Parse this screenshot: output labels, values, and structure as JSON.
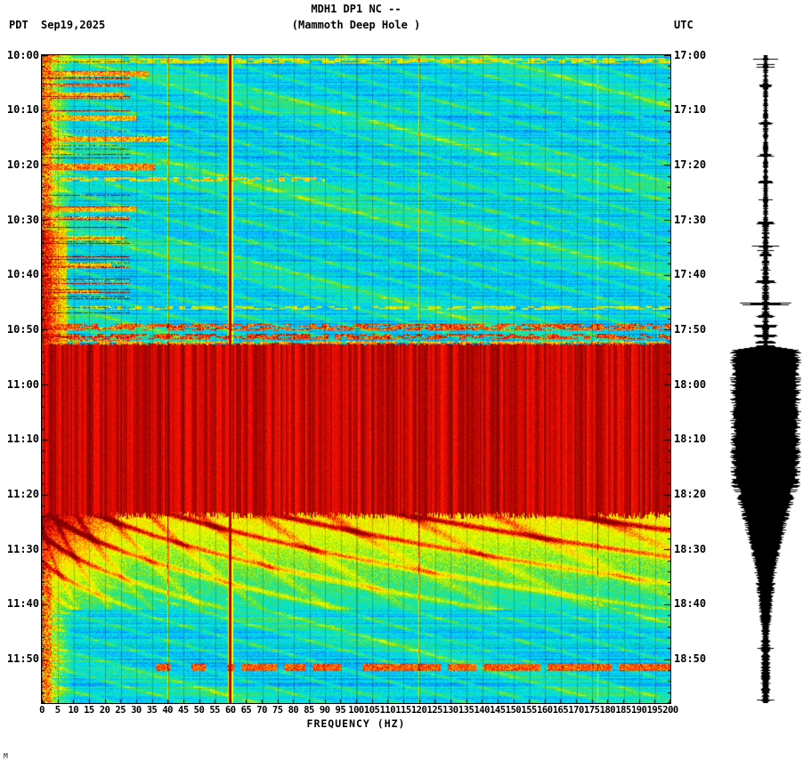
{
  "header": {
    "title": "MDH1 DP1 NC --",
    "subtitle": "(Mammoth Deep Hole )",
    "left_timezone": "PDT",
    "date": "Sep19,2025",
    "right_timezone": "UTC"
  },
  "footer": {
    "mark": "M"
  },
  "chart_data": {
    "type": "heatmap",
    "title": "MDH1 DP1 NC --",
    "subtitle": "(Mammoth Deep Hole )",
    "xlabel": "FREQUENCY (HZ)",
    "x_range_hz": [
      0,
      200
    ],
    "grid_step_hz": 5,
    "minutes_total": 118,
    "left_ticks": [
      "10:00",
      "10:10",
      "10:20",
      "10:30",
      "10:40",
      "10:50",
      "11:00",
      "11:10",
      "11:20",
      "11:30",
      "11:40",
      "11:50"
    ],
    "right_ticks": [
      "17:00",
      "17:10",
      "17:20",
      "17:30",
      "17:40",
      "17:50",
      "18:00",
      "18:10",
      "18:20",
      "18:30",
      "18:40",
      "18:50"
    ],
    "freq_ticks": [
      0,
      5,
      10,
      15,
      20,
      25,
      30,
      35,
      40,
      45,
      50,
      55,
      60,
      65,
      70,
      75,
      80,
      85,
      90,
      95,
      100,
      105,
      110,
      115,
      120,
      125,
      130,
      135,
      140,
      145,
      150,
      155,
      160,
      165,
      170,
      175,
      180,
      185,
      190,
      195,
      200
    ],
    "palette": [
      [
        0.0,
        "#000080"
      ],
      [
        0.14,
        "#0000ee"
      ],
      [
        0.28,
        "#0098ff"
      ],
      [
        0.4,
        "#00e8e8"
      ],
      [
        0.5,
        "#2ee06a"
      ],
      [
        0.6,
        "#b8f000"
      ],
      [
        0.7,
        "#ffff00"
      ],
      [
        0.8,
        "#ff8800"
      ],
      [
        0.89,
        "#ff1100"
      ],
      [
        1.0,
        "#8b0000"
      ]
    ],
    "features": {
      "background_level": 0.36,
      "low_freq_boost_hz": 10,
      "saturated_event": {
        "start_min": 52.8,
        "end_min": 83.2,
        "level": 0.95
      },
      "decay_region": {
        "end_min": 101,
        "start_level": 0.72,
        "end_level": 0.42
      },
      "late_band": {
        "start_min": 110.9,
        "end_min": 112.1,
        "min_hz": 36,
        "level": 0.82
      },
      "mains_hum_hz": 60,
      "faint_lines_hz": [
        40,
        120,
        177
      ],
      "strong_rows": [
        {
          "t": 1.0,
          "fmax": 200,
          "level": 0.62,
          "hw": 0.5,
          "dash": true
        },
        {
          "t": 3.4,
          "fmax": 34,
          "level": 0.72,
          "hw": 0.5
        },
        {
          "t": 7.2,
          "fmax": 26,
          "level": 0.7,
          "hw": 0.45
        },
        {
          "t": 11.5,
          "fmax": 30,
          "level": 0.7,
          "hw": 0.45
        },
        {
          "t": 15.3,
          "fmax": 40,
          "level": 0.72,
          "hw": 0.5
        },
        {
          "t": 20.4,
          "fmax": 36,
          "level": 0.75,
          "hw": 0.55
        },
        {
          "t": 22.6,
          "fmax": 90,
          "level": 0.66,
          "hw": 0.4,
          "dash": true
        },
        {
          "t": 28.0,
          "fmax": 30,
          "level": 0.7,
          "hw": 0.45
        },
        {
          "t": 33.3,
          "fmax": 26,
          "level": 0.68,
          "hw": 0.4
        },
        {
          "t": 38.2,
          "fmax": 22,
          "level": 0.68,
          "hw": 0.4
        },
        {
          "t": 43.0,
          "fmax": 18,
          "level": 0.7,
          "hw": 0.4
        },
        {
          "t": 46.0,
          "fmax": 200,
          "level": 0.6,
          "hw": 0.35,
          "dash": true
        },
        {
          "t": 49.5,
          "fmax": 200,
          "level": 0.8,
          "hw": 0.55,
          "dash": true
        },
        {
          "t": 51.2,
          "fmax": 200,
          "level": 0.82,
          "hw": 0.5,
          "dash": true
        },
        {
          "t": 52.3,
          "fmax": 200,
          "level": 0.7,
          "hw": 0.35,
          "dash": true
        }
      ]
    },
    "waveform": {
      "color": "#000000",
      "quiet_halfwidth": 2.2,
      "event": {
        "start_min": 52.8,
        "full_until_min": 78,
        "peak_halfwidth": 40,
        "taper_until_min": 94,
        "taper_halfwidth": 11,
        "calm_until_min": 105,
        "tail_halfwidth": 4
      },
      "pre_spikes": [
        {
          "t": 5.6,
          "hw": 7
        },
        {
          "t": 12.4,
          "hw": 7
        },
        {
          "t": 18.2,
          "hw": 8
        },
        {
          "t": 23.1,
          "hw": 8
        },
        {
          "t": 30.6,
          "hw": 9
        },
        {
          "t": 36.4,
          "hw": 8
        },
        {
          "t": 41.2,
          "hw": 11
        },
        {
          "t": 45.3,
          "hw": 24
        },
        {
          "t": 47.6,
          "hw": 10
        },
        {
          "t": 49.4,
          "hw": 13
        },
        {
          "t": 51.1,
          "hw": 12
        },
        {
          "t": 52.3,
          "hw": 10
        }
      ]
    }
  }
}
